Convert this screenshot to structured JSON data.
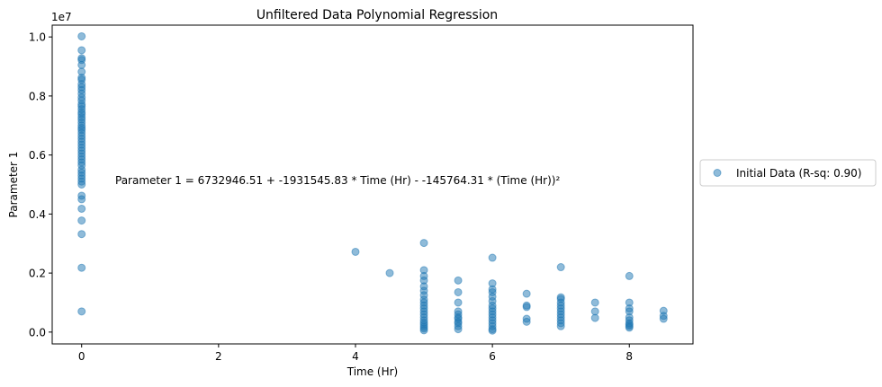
{
  "chart_data": {
    "type": "scatter",
    "title": "Unfiltered Data Polynomial Regression",
    "xlabel": "Time (Hr)",
    "ylabel": "Parameter 1",
    "y_scale_label": "1e7",
    "xlim": [
      -0.43,
      8.93
    ],
    "ylim": [
      -0.04,
      1.04
    ],
    "y_multiplier": 10000000,
    "x_ticks": [
      0,
      2,
      4,
      6,
      8
    ],
    "y_ticks": [
      0.0,
      0.2,
      0.4,
      0.6,
      0.8,
      1.0
    ],
    "y_tick_labels": [
      "0.0",
      "0.2",
      "0.4",
      "0.6",
      "0.8",
      "1.0"
    ],
    "grid": false,
    "legend_position": "outside-right",
    "annotation": "Parameter 1 = 6732946.51 + -1931545.83 * Time (Hr) - -145764.31 * (Time (Hr))²",
    "series": [
      {
        "name": "Initial Data (R-sq: 0.90)",
        "color": "#1f77b4",
        "alpha": 0.5,
        "points": [
          [
            0,
            1.002
          ],
          [
            0,
            0.955
          ],
          [
            0,
            0.928
          ],
          [
            0,
            0.922
          ],
          [
            0,
            0.905
          ],
          [
            0,
            0.882
          ],
          [
            0,
            0.862
          ],
          [
            0,
            0.855
          ],
          [
            0,
            0.84
          ],
          [
            0,
            0.83
          ],
          [
            0,
            0.82
          ],
          [
            0,
            0.808
          ],
          [
            0,
            0.795
          ],
          [
            0,
            0.785
          ],
          [
            0,
            0.772
          ],
          [
            0,
            0.765
          ],
          [
            0,
            0.755
          ],
          [
            0,
            0.745
          ],
          [
            0,
            0.738
          ],
          [
            0,
            0.728
          ],
          [
            0,
            0.72
          ],
          [
            0,
            0.71
          ],
          [
            0,
            0.7
          ],
          [
            0,
            0.692
          ],
          [
            0,
            0.685
          ],
          [
            0,
            0.675
          ],
          [
            0,
            0.665
          ],
          [
            0,
            0.655
          ],
          [
            0,
            0.645
          ],
          [
            0,
            0.635
          ],
          [
            0,
            0.625
          ],
          [
            0,
            0.615
          ],
          [
            0,
            0.605
          ],
          [
            0,
            0.595
          ],
          [
            0,
            0.585
          ],
          [
            0,
            0.575
          ],
          [
            0,
            0.565
          ],
          [
            0,
            0.55
          ],
          [
            0,
            0.54
          ],
          [
            0,
            0.53
          ],
          [
            0,
            0.52
          ],
          [
            0,
            0.51
          ],
          [
            0,
            0.5
          ],
          [
            0,
            0.462
          ],
          [
            0,
            0.45
          ],
          [
            0,
            0.418
          ],
          [
            0,
            0.378
          ],
          [
            0,
            0.332
          ],
          [
            0,
            0.218
          ],
          [
            0,
            0.07
          ],
          [
            4,
            0.272
          ],
          [
            4.5,
            0.2
          ],
          [
            5,
            0.302
          ],
          [
            5,
            0.21
          ],
          [
            5,
            0.19
          ],
          [
            5,
            0.175
          ],
          [
            5,
            0.155
          ],
          [
            5,
            0.14
          ],
          [
            5,
            0.125
          ],
          [
            5,
            0.11
          ],
          [
            5,
            0.1
          ],
          [
            5,
            0.09
          ],
          [
            5,
            0.08
          ],
          [
            5,
            0.07
          ],
          [
            5,
            0.06
          ],
          [
            5,
            0.05
          ],
          [
            5,
            0.04
          ],
          [
            5,
            0.032
          ],
          [
            5,
            0.025
          ],
          [
            5,
            0.018
          ],
          [
            5,
            0.012
          ],
          [
            5,
            0.006
          ],
          [
            5.5,
            0.175
          ],
          [
            5.5,
            0.135
          ],
          [
            5.5,
            0.1
          ],
          [
            5.5,
            0.07
          ],
          [
            5.5,
            0.06
          ],
          [
            5.5,
            0.05
          ],
          [
            5.5,
            0.045
          ],
          [
            5.5,
            0.035
          ],
          [
            5.5,
            0.03
          ],
          [
            5.5,
            0.02
          ],
          [
            5.5,
            0.01
          ],
          [
            6,
            0.252
          ],
          [
            6,
            0.165
          ],
          [
            6,
            0.145
          ],
          [
            6,
            0.135
          ],
          [
            6,
            0.12
          ],
          [
            6,
            0.105
          ],
          [
            6,
            0.09
          ],
          [
            6,
            0.08
          ],
          [
            6,
            0.07
          ],
          [
            6,
            0.06
          ],
          [
            6,
            0.05
          ],
          [
            6,
            0.04
          ],
          [
            6,
            0.03
          ],
          [
            6,
            0.02
          ],
          [
            6,
            0.01
          ],
          [
            6,
            0.005
          ],
          [
            6.5,
            0.13
          ],
          [
            6.5,
            0.09
          ],
          [
            6.5,
            0.085
          ],
          [
            6.5,
            0.045
          ],
          [
            6.5,
            0.035
          ],
          [
            7,
            0.22
          ],
          [
            7,
            0.118
          ],
          [
            7,
            0.112
          ],
          [
            7,
            0.1
          ],
          [
            7,
            0.09
          ],
          [
            7,
            0.08
          ],
          [
            7,
            0.07
          ],
          [
            7,
            0.06
          ],
          [
            7,
            0.05
          ],
          [
            7,
            0.04
          ],
          [
            7,
            0.03
          ],
          [
            7,
            0.02
          ],
          [
            7.5,
            0.1
          ],
          [
            7.5,
            0.07
          ],
          [
            7.5,
            0.048
          ],
          [
            8,
            0.19
          ],
          [
            8,
            0.1
          ],
          [
            8,
            0.08
          ],
          [
            8,
            0.07
          ],
          [
            8,
            0.05
          ],
          [
            8,
            0.04
          ],
          [
            8,
            0.03
          ],
          [
            8,
            0.025
          ],
          [
            8,
            0.02
          ],
          [
            8,
            0.015
          ],
          [
            8.5,
            0.072
          ],
          [
            8.5,
            0.055
          ],
          [
            8.5,
            0.045
          ]
        ]
      }
    ]
  }
}
